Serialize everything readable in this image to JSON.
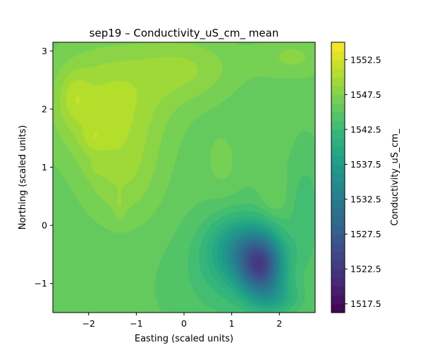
{
  "chart_data": {
    "type": "heatmap",
    "subtype": "filled-contour",
    "title": "sep19 – Conductivity_uS_cm_ mean",
    "xlabel": "Easting (scaled units)",
    "ylabel": "Northing (scaled units)",
    "xlim": [
      -2.75,
      2.75
    ],
    "ylim": [
      -1.5,
      3.15
    ],
    "x_ticks": [
      -2,
      -1,
      0,
      1,
      2
    ],
    "x_tick_labels": [
      "−2",
      "−1",
      "0",
      "1",
      "2"
    ],
    "y_ticks": [
      -1,
      0,
      1,
      2,
      3
    ],
    "y_tick_labels": [
      "−1",
      "0",
      "1",
      "2",
      "3"
    ],
    "colorbar": {
      "label": "Conductivity_uS_cm_",
      "colormap": "viridis",
      "range": [
        1516.25,
        1555.0
      ],
      "level_step": 1.25,
      "ticks": [
        1517.5,
        1522.5,
        1527.5,
        1532.5,
        1537.5,
        1542.5,
        1547.5,
        1552.5
      ],
      "tick_labels": [
        "1517.5",
        "1522.5",
        "1527.5",
        "1532.5",
        "1537.5",
        "1542.5",
        "1547.5",
        "1552.5"
      ]
    },
    "features": [
      {
        "name": "high plateau",
        "x": -1.3,
        "y": 1.9,
        "value": 1550.0
      },
      {
        "name": "high patches",
        "x": -2.2,
        "y": 2.3,
        "value": 1552.5
      },
      {
        "name": "minimum",
        "x": 1.62,
        "y": -0.7,
        "value": 1517.0
      },
      {
        "name": "background",
        "x": 0.0,
        "y": -1.2,
        "value": 1545.0
      }
    ],
    "grid": false
  },
  "colors": {
    "viridis": [
      "#440154",
      "#482878",
      "#3e4989",
      "#31688e",
      "#26828e",
      "#1f9e89",
      "#35b779",
      "#6ece58",
      "#b5de2b",
      "#fde725"
    ]
  }
}
